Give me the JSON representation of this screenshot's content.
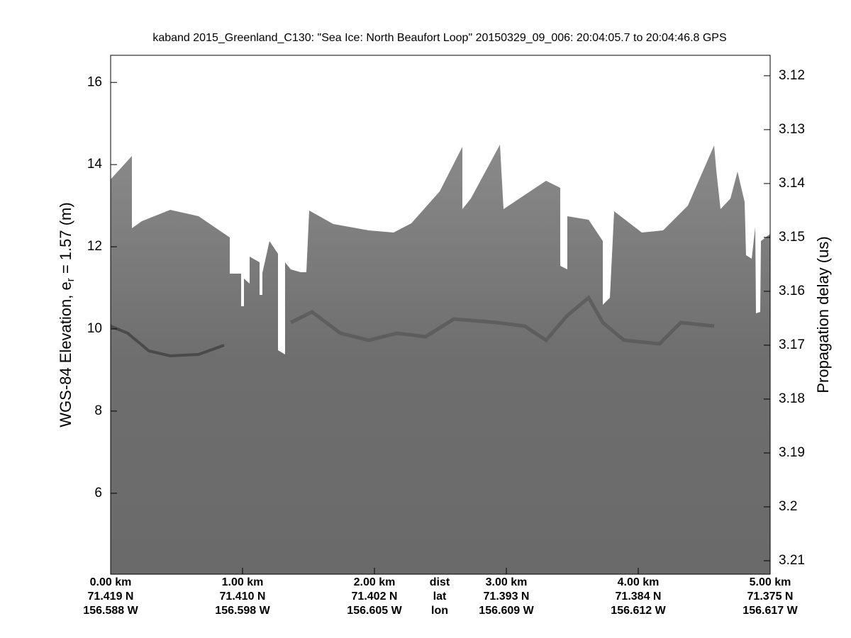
{
  "chart_data": {
    "type": "echogram",
    "title": "kaband 2015_Greenland_C130: \"Sea Ice: North Beaufort Loop\"  20150329_09_006: 20:04:05.7 to 20:04:46.8 GPS",
    "ylabel": "WGS-84 Elevation, e",
    "ylabel_sub": "r",
    "ylabel_tail": " = 1.57 (m)",
    "y2label": "Propagation delay (us)",
    "xlim": [
      0,
      5
    ],
    "ylim": [
      4.03,
      16.66
    ],
    "y2lim": [
      3.2125,
      3.1162
    ],
    "yticks": [
      6,
      8,
      10,
      12,
      14,
      16
    ],
    "y2ticks": [
      3.12,
      3.13,
      3.14,
      3.15,
      3.16,
      3.17,
      3.18,
      3.19,
      3.2,
      3.21
    ],
    "xticks": [
      {
        "value": 0,
        "label": "0.00 km"
      },
      {
        "value": 1,
        "label": "1.00 km"
      },
      {
        "value": 2,
        "label": "2.00 km"
      },
      {
        "value": 3,
        "label": "3.00 km"
      },
      {
        "value": 4,
        "label": "4.00 km"
      },
      {
        "value": 5,
        "label": "5.00 km"
      }
    ],
    "lat_labels": [
      "71.419 N",
      "71.410 N",
      "71.402 N",
      "71.393 N",
      "71.384 N",
      "71.375 N"
    ],
    "lon_labels": [
      "156.588 W",
      "156.598 W",
      "156.605 W",
      "156.609 W",
      "156.612 W",
      "156.617 W"
    ],
    "row_labels": [
      "dist",
      "lat",
      "lon"
    ]
  }
}
